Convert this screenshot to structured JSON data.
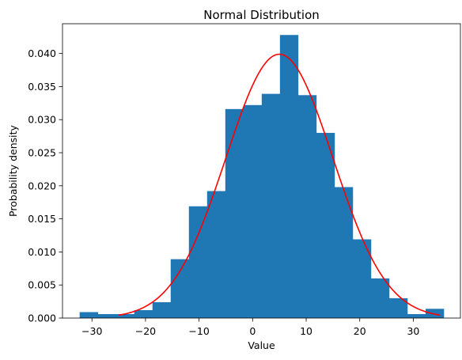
{
  "chart_data": {
    "type": "bar",
    "title": "Normal Distribution",
    "xlabel": "Value",
    "ylabel": "Probability density",
    "xlim": [
      -35.5,
      38.8
    ],
    "ylim": [
      0,
      0.0445
    ],
    "x_ticks": [
      -30,
      -20,
      -10,
      0,
      10,
      20,
      30
    ],
    "x_tick_labels": [
      "−30",
      "−20",
      "−10",
      "0",
      "10",
      "20",
      "30"
    ],
    "y_ticks": [
      0,
      0.005,
      0.01,
      0.015,
      0.02,
      0.025,
      0.03,
      0.035,
      0.04
    ],
    "y_tick_labels": [
      "0.000",
      "0.005",
      "0.010",
      "0.015",
      "0.020",
      "0.025",
      "0.030",
      "0.035",
      "0.040"
    ],
    "grid": false,
    "series": [
      {
        "type": "histogram",
        "color": "#1f77b4",
        "bin_edges": [
          -32.3,
          -28.9,
          -25.5,
          -22.1,
          -18.7,
          -15.3,
          -11.9,
          -8.5,
          -5.1,
          -1.7,
          1.7,
          5.1,
          8.5,
          11.9,
          15.3,
          18.7,
          22.1,
          25.5,
          28.9,
          32.3,
          35.7
        ],
        "values": [
          0.0009,
          0.0006,
          0.0006,
          0.0012,
          0.0024,
          0.0089,
          0.0169,
          0.0192,
          0.0316,
          0.0322,
          0.0339,
          0.0428,
          0.0337,
          0.028,
          0.0198,
          0.0119,
          0.006,
          0.003,
          0.0006,
          0.0014
        ]
      },
      {
        "type": "line",
        "color": "#ff0000",
        "curve": "normal_pdf",
        "mean": 5,
        "std": 10,
        "x_range": [
          -25,
          35
        ]
      }
    ]
  }
}
